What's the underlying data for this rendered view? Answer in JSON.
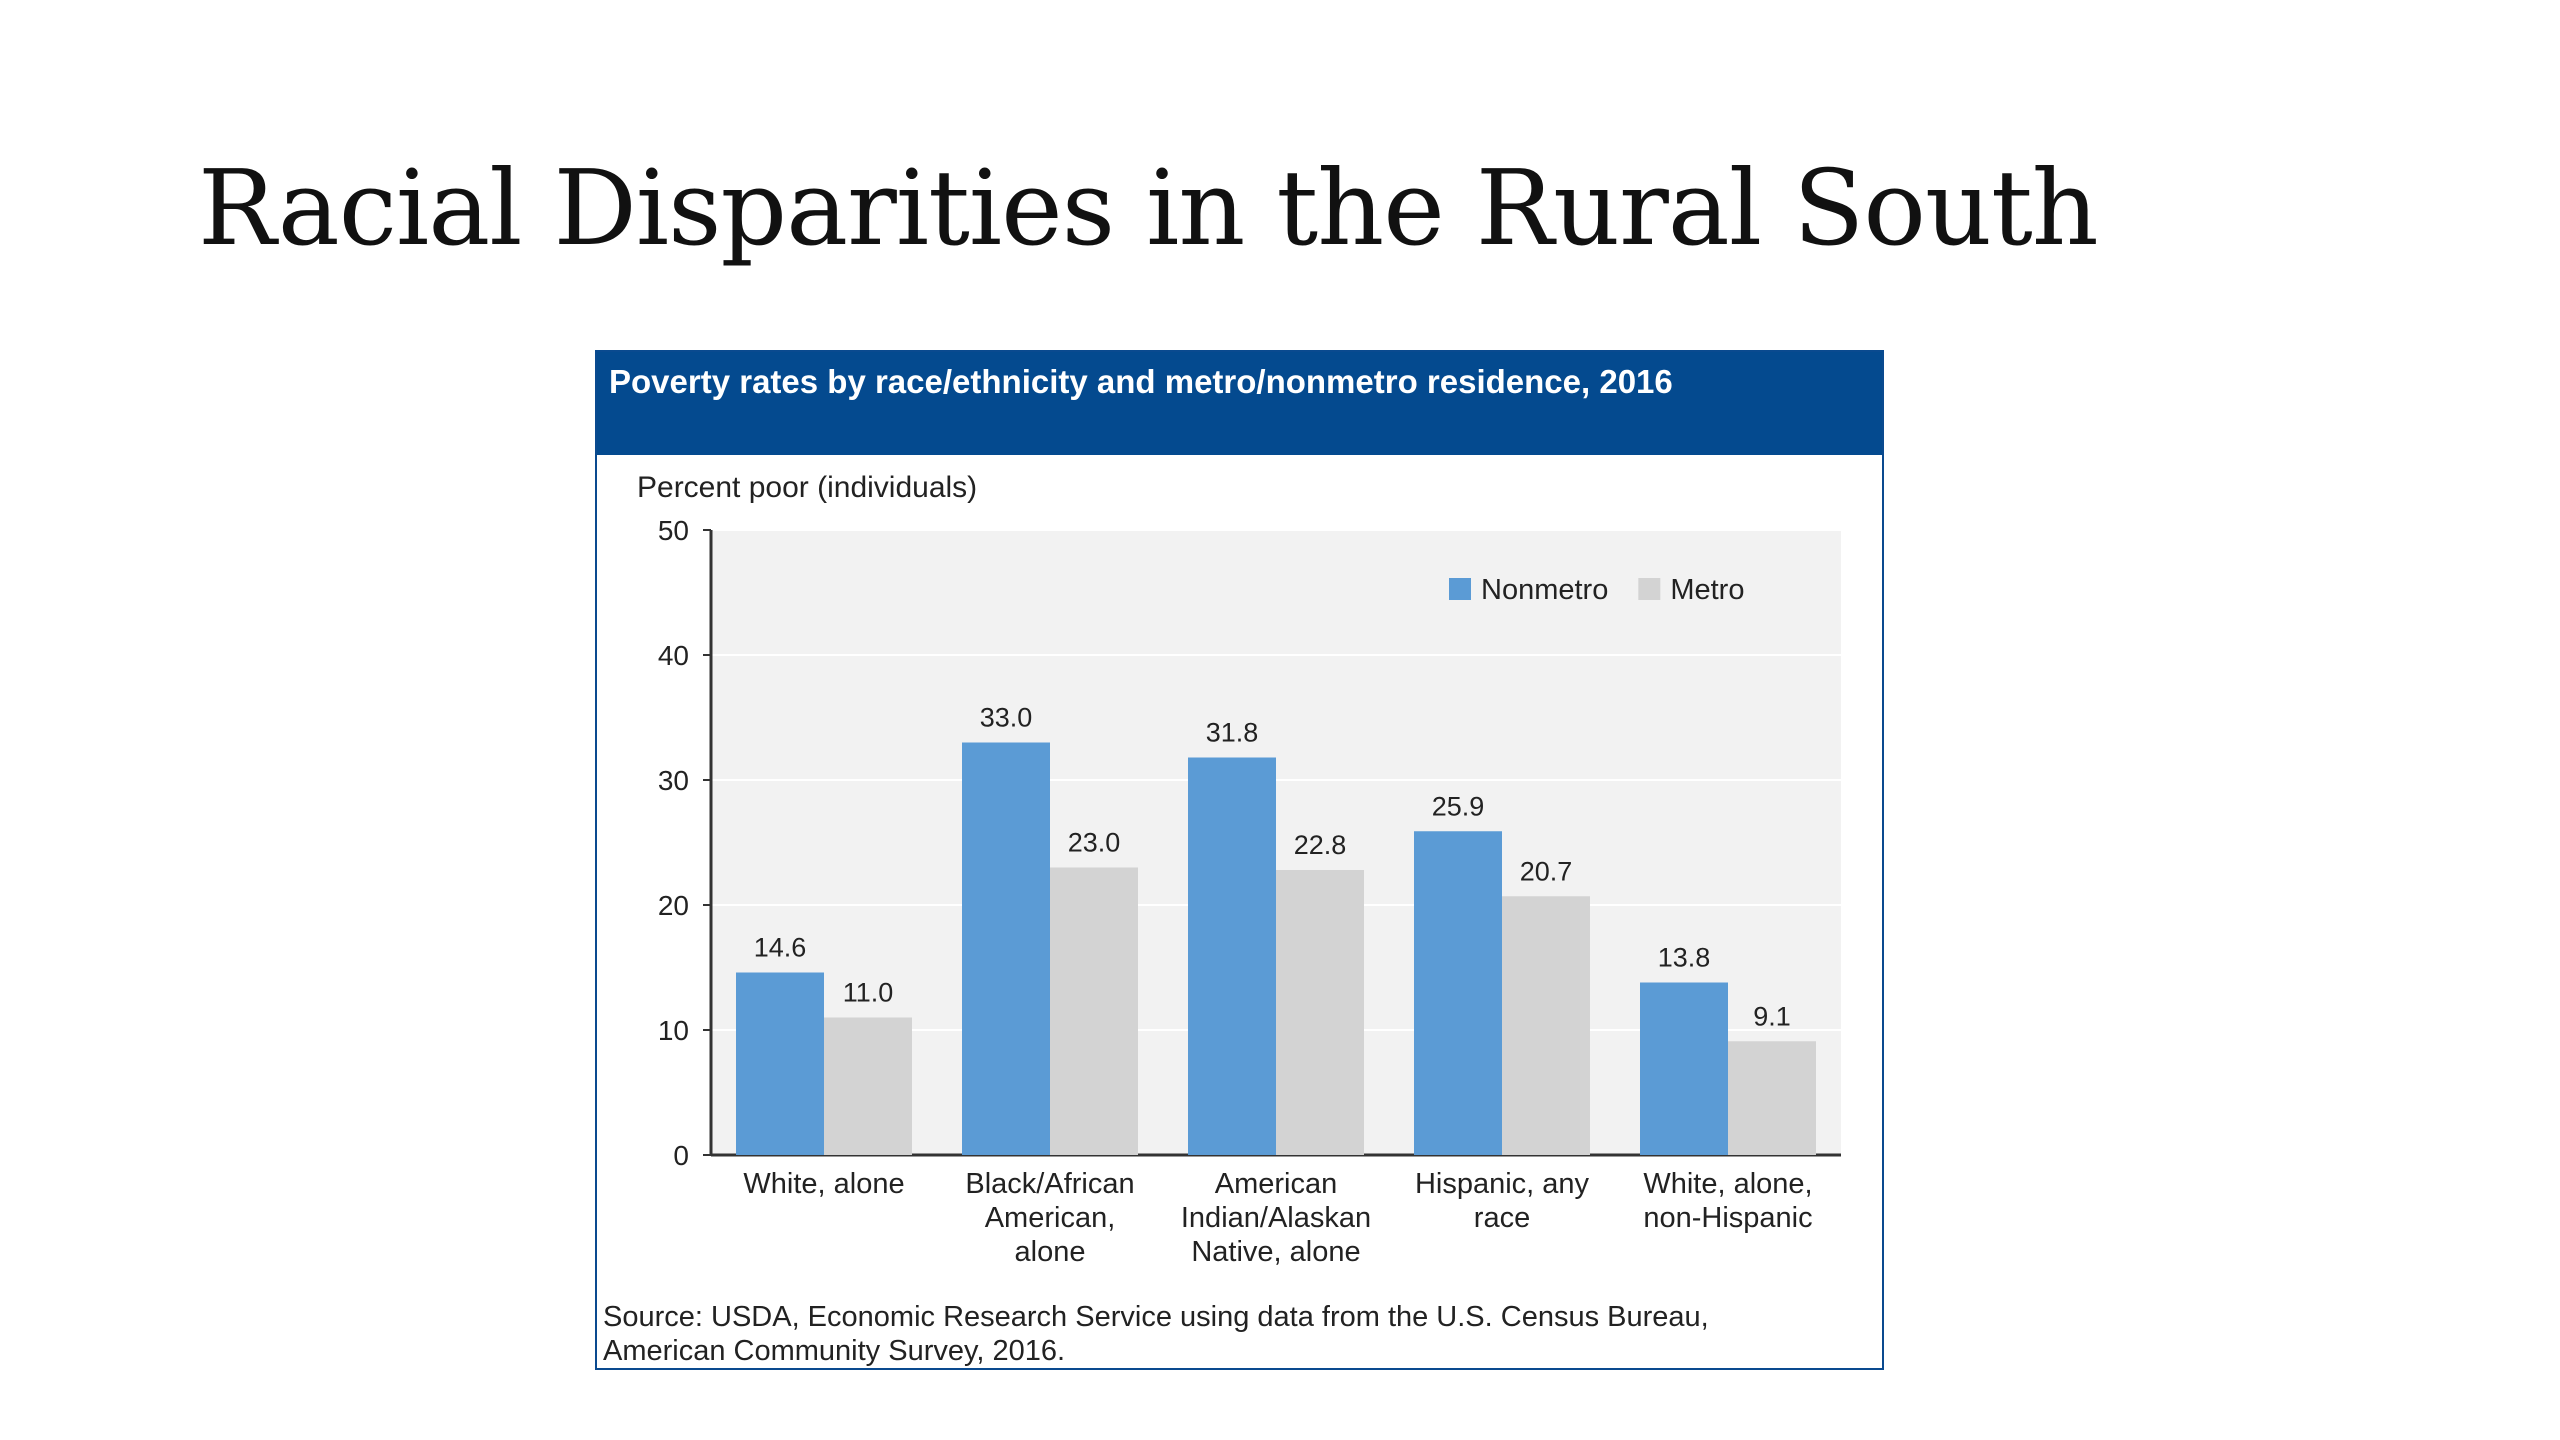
{
  "slide": {
    "title": "Racial Disparities in the Rural South"
  },
  "chart_data": {
    "type": "bar",
    "title": "Poverty rates by race/ethnicity and metro/nonmetro residence, 2016",
    "ylabel": "Percent poor (individuals)",
    "xlabel": "",
    "ylim": [
      0,
      50
    ],
    "yticks": [
      0,
      10,
      20,
      30,
      40,
      50
    ],
    "grid": true,
    "legend_position": "top-right",
    "categories": [
      [
        "White, alone"
      ],
      [
        "Black/African",
        "American,",
        "alone"
      ],
      [
        "American",
        "Indian/Alaskan",
        "Native, alone"
      ],
      [
        "Hispanic, any",
        "race"
      ],
      [
        "White, alone,",
        "non-Hispanic"
      ]
    ],
    "series": [
      {
        "name": "Nonmetro",
        "color": "#5b9bd5",
        "values": [
          14.6,
          33.0,
          31.8,
          25.9,
          13.8
        ],
        "labels": [
          "14.6",
          "33.0",
          "31.8",
          "25.9",
          "13.8"
        ]
      },
      {
        "name": "Metro",
        "color": "#d3d3d3",
        "values": [
          11.0,
          23.0,
          22.8,
          20.7,
          9.1
        ],
        "labels": [
          "11.0",
          "23.0",
          "22.8",
          "20.7",
          "9.1"
        ]
      }
    ],
    "source": [
      "Source: USDA, Economic Research Service using data from the U.S. Census Bureau,",
      "American Community Survey, 2016."
    ]
  }
}
